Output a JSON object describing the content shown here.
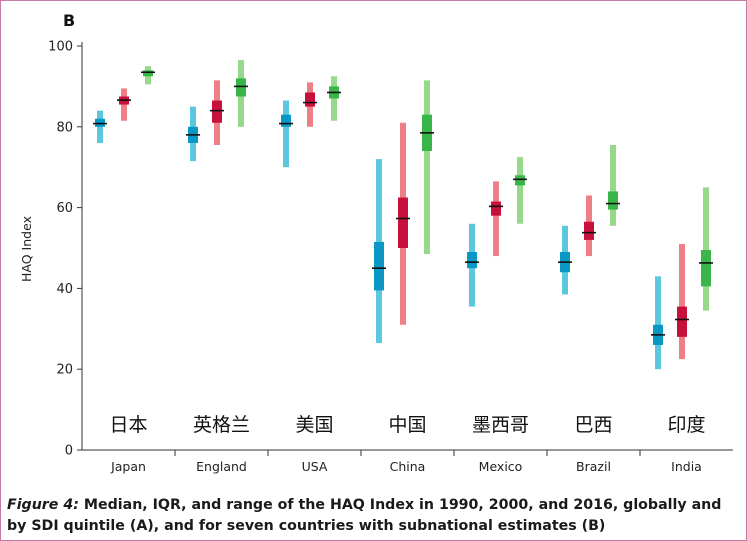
{
  "panel_label": "B",
  "caption": {
    "figure_label": "Figure 4:",
    "text": " Median, IQR, and range of the HAQ Index in 1990, 2000, and 2016, globally and by SDI quintile (A), and for seven countries with subnational estimates (B)"
  },
  "colors": {
    "1990": {
      "range": "#5bc8dd",
      "iqr": "#0a97c4"
    },
    "2000": {
      "range": "#ef7f86",
      "iqr": "#c8103c"
    },
    "2016": {
      "range": "#96d98a",
      "iqr": "#3ab54a"
    },
    "median": "#111111",
    "axis": "#333333",
    "frame": "#c77aa6"
  },
  "chart_data": {
    "type": "range-bar",
    "title": "",
    "panel": "B",
    "ylabel": "HAQ Index",
    "xlabel": "",
    "ylim": [
      0,
      100
    ],
    "yticks": [
      0,
      20,
      40,
      60,
      80,
      100
    ],
    "grid": false,
    "legend": "none",
    "years": [
      "1990",
      "2000",
      "2016"
    ],
    "categories": [
      "Japan",
      "England",
      "USA",
      "China",
      "Mexico",
      "Brazil",
      "India"
    ],
    "annotations": [
      "日本",
      "英格兰",
      "美国",
      "中国",
      "墨西哥",
      "巴西",
      "印度"
    ],
    "series": [
      {
        "min": [
          76.0,
          71.5,
          70.0,
          26.5,
          35.5,
          38.5,
          20.0
        ],
        "q1": [
          80.0,
          76.0,
          80.0,
          39.5,
          45.0,
          44.0,
          26.0
        ],
        "median": [
          80.8,
          78.0,
          80.8,
          45.0,
          46.5,
          46.5,
          28.5
        ],
        "q3": [
          82.0,
          80.0,
          83.0,
          51.5,
          49.0,
          49.0,
          31.0
        ],
        "max": [
          84.0,
          85.0,
          86.5,
          72.0,
          56.0,
          55.5,
          43.0
        ]
      },
      {
        "min": [
          81.5,
          75.5,
          80.0,
          31.0,
          48.0,
          48.0,
          22.5
        ],
        "q1": [
          85.5,
          81.0,
          85.0,
          50.0,
          58.0,
          52.0,
          28.0
        ],
        "median": [
          86.6,
          84.0,
          86.0,
          57.3,
          60.3,
          53.8,
          32.3
        ],
        "q3": [
          87.5,
          86.5,
          88.5,
          62.5,
          61.5,
          56.5,
          35.5
        ],
        "max": [
          89.5,
          91.5,
          91.0,
          81.0,
          66.5,
          63.0,
          51.0
        ]
      },
      {
        "min": [
          90.5,
          80.0,
          81.5,
          48.5,
          56.0,
          55.5,
          34.5
        ],
        "q1": [
          92.5,
          87.5,
          87.0,
          74.0,
          65.5,
          59.5,
          40.5
        ],
        "median": [
          93.5,
          90.0,
          88.5,
          78.5,
          67.0,
          61.0,
          46.3
        ],
        "q3": [
          94.0,
          92.0,
          90.0,
          83.0,
          68.0,
          64.0,
          49.5
        ],
        "max": [
          95.0,
          96.5,
          92.5,
          91.5,
          72.5,
          75.5,
          65.0
        ]
      }
    ]
  }
}
